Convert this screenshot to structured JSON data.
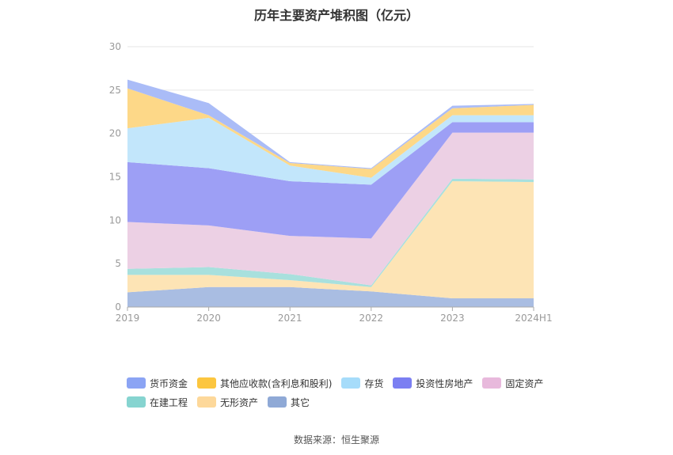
{
  "title": "历年主要资产堆积图（亿元）",
  "source": "数据来源：恒生聚源",
  "chart_data": {
    "type": "area",
    "stacked": true,
    "categories": [
      "2019",
      "2020",
      "2021",
      "2022",
      "2023",
      "2024H1"
    ],
    "ylim": [
      0,
      30
    ],
    "yticks": [
      0,
      5,
      10,
      15,
      20,
      25,
      30
    ],
    "grid": true,
    "legend_position": "bottom",
    "series": [
      {
        "name": "其它",
        "color": "#a9bde2",
        "values": [
          1.7,
          2.3,
          2.3,
          1.8,
          1.0,
          1.0
        ]
      },
      {
        "name": "无形资产",
        "color": "#fde4b5",
        "values": [
          2.0,
          1.4,
          0.8,
          0.5,
          13.5,
          13.4
        ]
      },
      {
        "name": "在建工程",
        "color": "#a8e0dd",
        "values": [
          0.7,
          0.9,
          0.7,
          0.2,
          0.3,
          0.3
        ]
      },
      {
        "name": "固定资产",
        "color": "#ecd0e4",
        "values": [
          5.4,
          4.8,
          4.4,
          5.4,
          5.3,
          5.4
        ]
      },
      {
        "name": "投资性房地产",
        "color": "#9d9ff5",
        "values": [
          6.9,
          6.6,
          6.3,
          6.2,
          1.2,
          1.2
        ]
      },
      {
        "name": "存货",
        "color": "#c2e6fb",
        "values": [
          3.9,
          5.8,
          1.8,
          0.8,
          0.8,
          0.8
        ]
      },
      {
        "name": "其他应收款(含利息和股利)",
        "color": "#fdd888",
        "values": [
          4.6,
          0.3,
          0.3,
          1.0,
          0.8,
          1.2
        ]
      },
      {
        "name": "货币资金",
        "color": "#aabcf7",
        "values": [
          1.0,
          1.4,
          0.1,
          0.1,
          0.3,
          0.1
        ]
      }
    ]
  },
  "legend": [
    [
      {
        "name": "货币资金",
        "color": "#8ba4f4"
      },
      {
        "name": "其他应收款(含利息和股利)",
        "color": "#fcc63f"
      },
      {
        "name": "存货",
        "color": "#a6dcfa"
      },
      {
        "name": "投资性房地产",
        "color": "#7b7ff2"
      },
      {
        "name": "固定资产",
        "color": "#e8b9dc"
      }
    ],
    [
      {
        "name": "在建工程",
        "color": "#86d4d0"
      },
      {
        "name": "无形资产",
        "color": "#fdd89a"
      },
      {
        "name": "其它",
        "color": "#8fa9d6"
      }
    ]
  ]
}
